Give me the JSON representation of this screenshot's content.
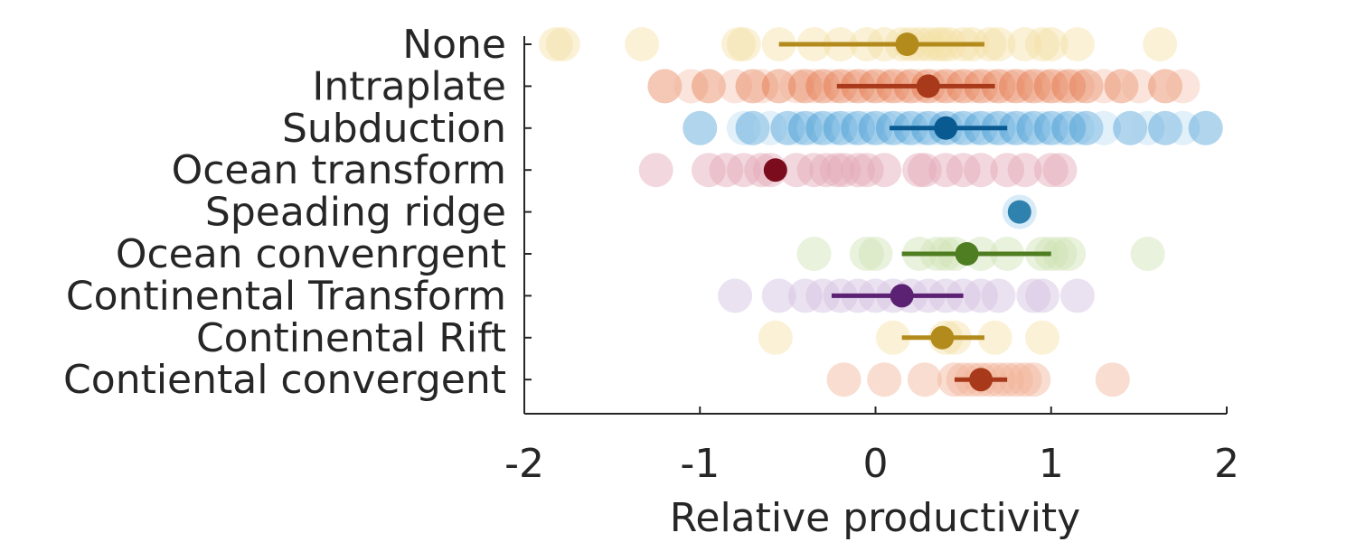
{
  "chart_data": {
    "type": "scatter",
    "title": "",
    "xlabel": "Relative productivity",
    "ylabel": "",
    "xlim": [
      -2,
      2
    ],
    "xticks": [
      -2,
      -1,
      0,
      1,
      2
    ],
    "xtick_labels": [
      "-2",
      "-1",
      "0",
      "1",
      "2"
    ],
    "grid": false,
    "legend": "none",
    "series": [
      {
        "name": "None",
        "light": "#f5dfa3",
        "dark": "#b38b1d",
        "points": [
          -1.82,
          -1.78,
          -1.33,
          -0.78,
          -0.75,
          -0.55,
          -0.35,
          -0.2,
          -0.05,
          0.05,
          0.15,
          0.2,
          0.25,
          0.3,
          0.35,
          0.38,
          0.42,
          0.5,
          0.55,
          0.65,
          0.7,
          0.85,
          0.95,
          1.0,
          1.15,
          1.62
        ],
        "mean": 0.18,
        "ci": [
          -0.55,
          0.62
        ]
      },
      {
        "name": "Intraplate",
        "light": "#f2b39a",
        "dark": "#a8391a",
        "mid": "#e0622a",
        "points": [
          -1.2,
          -1.05,
          -0.95,
          -0.8,
          -0.7,
          -0.65,
          -0.55,
          -0.45,
          -0.4,
          -0.35,
          -0.3,
          -0.25,
          -0.2,
          -0.15,
          -0.1,
          -0.05,
          0.0,
          0.05,
          0.1,
          0.15,
          0.2,
          0.25,
          0.3,
          0.35,
          0.4,
          0.45,
          0.5,
          0.55,
          0.6,
          0.65,
          0.7,
          0.75,
          0.8,
          0.85,
          0.9,
          0.95,
          1.0,
          1.05,
          1.1,
          1.15,
          1.2,
          1.3,
          1.4,
          1.5,
          1.65,
          1.75
        ],
        "mean": 0.3,
        "ci": [
          -0.22,
          0.68
        ]
      },
      {
        "name": "Subduction",
        "light": "#a9d3ef",
        "dark": "#0a5a92",
        "mid": "#1f86cc",
        "points": [
          -1.0,
          -0.75,
          -0.7,
          -0.6,
          -0.5,
          -0.45,
          -0.4,
          -0.35,
          -0.3,
          -0.25,
          -0.2,
          -0.15,
          -0.1,
          -0.05,
          0.0,
          0.05,
          0.1,
          0.15,
          0.2,
          0.25,
          0.3,
          0.35,
          0.4,
          0.45,
          0.5,
          0.55,
          0.6,
          0.65,
          0.7,
          0.75,
          0.8,
          0.85,
          0.9,
          0.95,
          1.0,
          1.05,
          1.1,
          1.15,
          1.2,
          1.3,
          1.45,
          1.55,
          1.65,
          1.75,
          1.88
        ],
        "mean": 0.4,
        "ci": [
          0.08,
          0.75
        ]
      },
      {
        "name": "Ocean transform",
        "light": "#e3a9b6",
        "dark": "#7a0c1e",
        "points": [
          -1.25,
          -0.95,
          -0.85,
          -0.75,
          -0.65,
          -0.6,
          -0.45,
          -0.35,
          -0.28,
          -0.22,
          -0.18,
          -0.1,
          -0.05,
          0.05,
          0.25,
          0.28,
          0.4,
          0.5,
          0.6,
          0.75,
          0.85,
          1.0,
          1.05
        ],
        "mean": -0.57,
        "ci": [
          -0.57,
          -0.57
        ]
      },
      {
        "name": "Speading ridge",
        "light": "#a9d3ef",
        "dark": "#2f82ad",
        "points": [
          0.82
        ],
        "mean": 0.82,
        "ci": [
          0.82,
          0.82
        ]
      },
      {
        "name": "Ocean convenrgent",
        "light": "#cfe3b3",
        "dark": "#4f7d21",
        "points": [
          -0.35,
          -0.05,
          0.0,
          0.25,
          0.35,
          0.4,
          0.45,
          0.6,
          0.75,
          0.95,
          1.0,
          1.05,
          1.1,
          1.55
        ],
        "mean": 0.52,
        "ci": [
          0.15,
          1.0
        ]
      },
      {
        "name": "Continental Transform",
        "light": "#d3bfe0",
        "dark": "#5b2173",
        "points": [
          -0.8,
          -0.55,
          -0.4,
          -0.3,
          -0.2,
          -0.1,
          0.0,
          0.1,
          0.2,
          0.3,
          0.4,
          0.5,
          0.6,
          0.7,
          0.9,
          0.95,
          1.15
        ],
        "mean": 0.15,
        "ci": [
          -0.25,
          0.5
        ]
      },
      {
        "name": "Continental Rift",
        "light": "#f5dfa3",
        "dark": "#b38b1d",
        "points": [
          -0.57,
          0.1,
          0.4,
          0.45,
          0.68,
          0.95
        ],
        "mean": 0.38,
        "ci": [
          0.15,
          0.62
        ]
      },
      {
        "name": "Contiental convergent",
        "light": "#f2b39a",
        "dark": "#a8391a",
        "points": [
          -0.18,
          0.05,
          0.28,
          0.45,
          0.5,
          0.55,
          0.6,
          0.65,
          0.7,
          0.75,
          0.8,
          0.85,
          0.9,
          1.35
        ],
        "mean": 0.6,
        "ci": [
          0.45,
          0.75
        ]
      }
    ]
  }
}
